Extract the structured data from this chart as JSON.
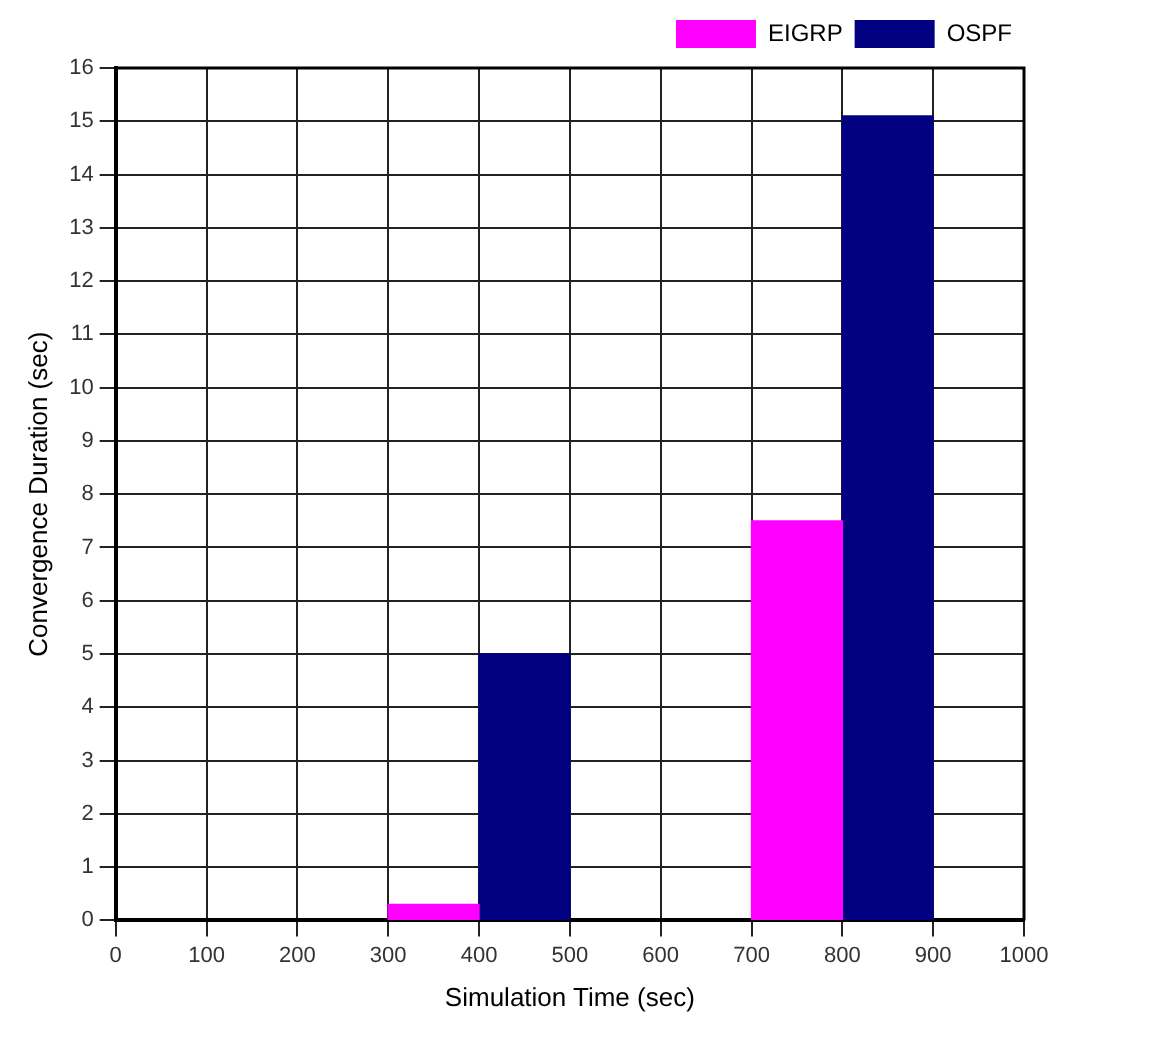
{
  "chart_data": {
    "type": "bar",
    "xlabel": "Simulation Time (sec)",
    "ylabel": "Convergence Duration (sec)",
    "series": [
      {
        "name": "EIGRP",
        "color": "#ff00ff",
        "x": [
          350,
          750
        ],
        "values": [
          0.3,
          7.5
        ]
      },
      {
        "name": "OSPF",
        "color": "#000080",
        "x": [
          450,
          850
        ],
        "values": [
          5,
          15.1
        ]
      }
    ],
    "xlim": [
      0,
      1000
    ],
    "xticks": [
      0,
      100,
      200,
      300,
      400,
      500,
      600,
      700,
      800,
      900,
      1000
    ],
    "ylim": [
      0,
      16
    ],
    "yticks": [
      0,
      1,
      2,
      3,
      4,
      5,
      6,
      7,
      8,
      9,
      10,
      11,
      12,
      13,
      14,
      15,
      16
    ],
    "grid": true,
    "legend": "top right"
  }
}
